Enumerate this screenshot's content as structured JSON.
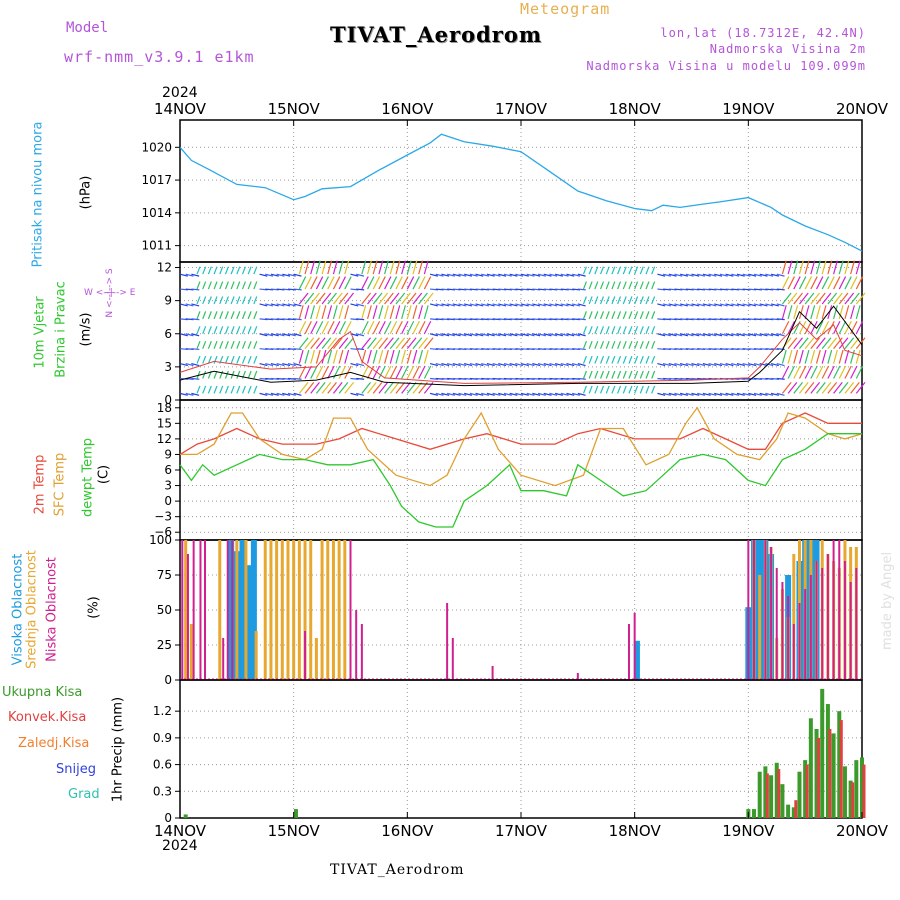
{
  "header": {
    "model_label": "Model",
    "model_value": "wrf-nmm_v3.9.1  e1km",
    "meteogram_label": "Meteogram",
    "station_title": "TIVAT_Aerodrom",
    "lonlat": "lon,lat (18.7312E, 42.4N)",
    "height": "Nadmorska Visina 2m",
    "model_height": "Nadmorska Visina u modelu 109.099m",
    "year": "2024",
    "watermark": "made by Angel"
  },
  "footer": {
    "station": "TIVAT_Aerodrom",
    "year": "2024"
  },
  "x_axis": {
    "labels": [
      "14NOV",
      "15NOV",
      "16NOV",
      "17NOV",
      "18NOV",
      "19NOV",
      "20NOV"
    ],
    "range_days": [
      0,
      6
    ]
  },
  "panel_labels": {
    "pressure": [
      "Pritisak na nivou mora"
    ],
    "pressure_unit": "(hPa)",
    "wind": [
      "10m Vjetar",
      "Brzina i Pravac"
    ],
    "wind_unit": "(m/s)",
    "wind_compass": "W <--|--> E",
    "wind_compass_vertical": "N <--|--> S",
    "temp": [
      "2m Temp",
      "SFC Temp",
      "dewpt Temp"
    ],
    "temp_unit": "(C)",
    "cloud": [
      "Visoka Oblacnost",
      "Srednja Oblacnost",
      "Niska Oblacnost"
    ],
    "cloud_unit": "(%)",
    "precip": [
      "Ukupna Kisa",
      "Konvek.Kisa",
      "Zaledj.Kisa",
      "Snijeg",
      "Grad"
    ],
    "precip_unit": "1hr Precip (mm)"
  },
  "colors": {
    "pressure": "#2ba8e8",
    "temp2m": "#e84a3a",
    "sfc": "#e0a030",
    "dewpt": "#2ec82e",
    "high_cloud": "#1e9be0",
    "mid_cloud": "#e8a830",
    "low_cloud": "#d02090",
    "total_rain": "#3a9a2a",
    "conv_rain": "#e04040",
    "frz_rain": "#f08030",
    "snow": "#3040e0",
    "hail": "#30c0b0",
    "model": "#b455d8",
    "meteogram": "#e8b050"
  },
  "chart_data": [
    {
      "type": "line",
      "name": "pressure",
      "ylim": [
        1009.5,
        1022.5
      ],
      "yticks": [
        1011,
        1014,
        1017,
        1020
      ],
      "series": [
        {
          "x": [
            0,
            0.1,
            0.25,
            0.5,
            0.75,
            1.0,
            1.1,
            1.25,
            1.5,
            1.75,
            2.0,
            2.2,
            2.3,
            2.5,
            2.75,
            3.0,
            3.25,
            3.5,
            3.75,
            4.0,
            4.15,
            4.25,
            4.4,
            4.6,
            4.75,
            5.0,
            5.2,
            5.3,
            5.5,
            5.7,
            5.85,
            6.0
          ],
          "y": [
            1020,
            1018.8,
            1018,
            1016.6,
            1016.3,
            1015.2,
            1015.5,
            1016.2,
            1016.4,
            1017.9,
            1019.3,
            1020.4,
            1021.2,
            1020.5,
            1020.1,
            1019.6,
            1017.8,
            1016.0,
            1015.1,
            1014.4,
            1014.2,
            1014.7,
            1014.5,
            1014.8,
            1015.0,
            1015.4,
            1014.5,
            1013.8,
            1012.8,
            1012.0,
            1011.3,
            1010.5
          ]
        }
      ]
    },
    {
      "type": "line",
      "name": "wind",
      "ylim": [
        0,
        12.5
      ],
      "yticks": [
        0,
        3,
        6,
        9,
        12
      ],
      "series": [
        {
          "name": "gust",
          "x": [
            0,
            0.3,
            0.8,
            1.2,
            1.4,
            1.5,
            1.6,
            1.8,
            2.5,
            3.5,
            4.5,
            5.0,
            5.1,
            5.3,
            5.45,
            5.6,
            5.75,
            5.85,
            6.0
          ],
          "y": [
            2.5,
            3.5,
            2.8,
            3.0,
            5.5,
            6.2,
            3.5,
            2.0,
            1.5,
            1.6,
            1.8,
            2.0,
            3.0,
            5.5,
            7.0,
            5.5,
            6.8,
            4.5,
            4.0
          ]
        },
        {
          "name": "wind_speed",
          "x": [
            0,
            0.3,
            0.8,
            1.2,
            1.5,
            1.8,
            2.5,
            3.5,
            4.5,
            5.0,
            5.1,
            5.3,
            5.45,
            5.6,
            5.75,
            6.0
          ],
          "y": [
            1.8,
            2.6,
            1.6,
            1.8,
            2.5,
            1.6,
            1.3,
            1.5,
            1.5,
            1.7,
            2.5,
            4.5,
            8.0,
            6.5,
            8.5,
            5.0
          ]
        }
      ],
      "barbs_direction_note": "wind vectors shown as coloured arrows along the panel"
    },
    {
      "type": "line",
      "name": "temperature",
      "ylim": [
        -7.5,
        19.5
      ],
      "yticks": [
        -6,
        -3,
        0,
        3,
        6,
        9,
        12,
        15,
        18
      ],
      "series": [
        {
          "name": "2m Temp",
          "x": [
            0,
            0.15,
            0.3,
            0.5,
            0.7,
            0.9,
            1.2,
            1.4,
            1.6,
            1.9,
            2.2,
            2.5,
            2.7,
            3.0,
            3.3,
            3.5,
            3.7,
            4.0,
            4.2,
            4.4,
            4.6,
            4.8,
            5.0,
            5.15,
            5.3,
            5.5,
            5.7,
            5.85,
            6.0
          ],
          "y": [
            9,
            11,
            12,
            14,
            12,
            11,
            11,
            12,
            14,
            12,
            10,
            12,
            13,
            11,
            11,
            13,
            14,
            12,
            12,
            12,
            14,
            12,
            10,
            10,
            15,
            17,
            15,
            15,
            15
          ]
        },
        {
          "name": "SFC Temp",
          "x": [
            0,
            0.15,
            0.3,
            0.45,
            0.55,
            0.7,
            0.9,
            1.1,
            1.25,
            1.35,
            1.5,
            1.65,
            1.9,
            2.2,
            2.35,
            2.5,
            2.65,
            2.8,
            3.0,
            3.3,
            3.55,
            3.7,
            3.9,
            4.1,
            4.3,
            4.45,
            4.55,
            4.7,
            4.9,
            5.1,
            5.25,
            5.35,
            5.5,
            5.7,
            5.85,
            6.0
          ],
          "y": [
            9,
            9,
            11,
            17,
            17,
            12,
            9,
            8,
            10,
            16,
            16,
            10,
            5,
            3,
            5,
            12,
            17,
            10,
            5,
            3,
            5,
            14,
            14,
            7,
            9,
            15,
            18,
            12,
            9,
            8,
            12,
            17,
            16,
            13,
            12,
            13
          ]
        },
        {
          "name": "dewpt Temp",
          "x": [
            0,
            0.1,
            0.2,
            0.3,
            0.5,
            0.7,
            0.9,
            1.1,
            1.3,
            1.5,
            1.7,
            1.85,
            1.95,
            2.1,
            2.25,
            2.4,
            2.5,
            2.7,
            2.9,
            3.0,
            3.2,
            3.4,
            3.5,
            3.7,
            3.9,
            4.1,
            4.25,
            4.4,
            4.6,
            4.8,
            5.0,
            5.15,
            5.3,
            5.5,
            5.7,
            5.85,
            6.0
          ],
          "y": [
            7,
            4,
            7,
            5,
            7,
            9,
            8,
            8,
            7,
            7,
            8,
            3,
            -1,
            -4,
            -5,
            -5,
            0,
            3,
            7,
            2,
            2,
            1,
            7,
            4,
            1,
            2,
            5,
            8,
            9,
            8,
            4,
            3,
            8,
            10,
            13,
            13,
            13
          ]
        }
      ]
    },
    {
      "type": "bar",
      "name": "cloud",
      "ylim": [
        0,
        100
      ],
      "yticks": [
        0,
        25,
        50,
        75,
        100
      ],
      "series": [
        {
          "name": "Visoka Oblacnost",
          "x": [
            0.45,
            0.5,
            0.55,
            0.6,
            0.65,
            0.72,
            4.02,
            5.0,
            5.05,
            5.1,
            5.15,
            5.2,
            5.35,
            5.45,
            5.5,
            5.55,
            5.6
          ],
          "y": [
            100,
            92,
            100,
            82,
            100,
            0,
            28,
            52,
            100,
            100,
            100,
            90,
            75,
            85,
            100,
            100,
            100
          ]
        },
        {
          "name": "Srednja Oblacnost",
          "x": [
            0.05,
            0.1,
            0.35,
            0.5,
            0.58,
            0.67,
            0.75,
            0.8,
            0.85,
            0.9,
            0.95,
            1.0,
            1.05,
            1.1,
            1.15,
            1.2,
            1.25,
            1.3,
            1.35,
            1.4,
            1.45,
            5.05,
            5.1,
            5.15,
            5.2,
            5.25,
            5.3,
            5.35,
            5.4,
            5.45,
            5.5,
            5.55,
            5.6,
            5.65,
            5.7,
            5.75,
            5.8,
            5.85,
            5.9,
            5.95
          ],
          "y": [
            100,
            40,
            100,
            100,
            100,
            35,
            100,
            100,
            100,
            100,
            100,
            100,
            100,
            100,
            100,
            30,
            100,
            100,
            100,
            100,
            100,
            100,
            75,
            100,
            95,
            30,
            65,
            45,
            90,
            100,
            100,
            100,
            85,
            100,
            90,
            85,
            80,
            100,
            95,
            95
          ]
        },
        {
          "name": "Niska Oblacnost",
          "x": [
            0.02,
            0.07,
            0.12,
            0.18,
            0.22,
            0.38,
            0.42,
            0.46,
            1.1,
            1.5,
            1.55,
            1.6,
            2.35,
            2.4,
            2.75,
            3.5,
            3.95,
            4.0,
            5.0,
            5.05,
            5.15,
            5.2,
            5.25,
            5.3,
            5.35,
            5.4,
            5.45,
            5.5,
            5.55,
            5.6,
            5.65,
            5.7,
            5.75,
            5.8,
            5.85,
            5.9,
            5.95
          ],
          "y": [
            100,
            90,
            100,
            100,
            100,
            30,
            100,
            100,
            35,
            100,
            50,
            40,
            55,
            30,
            10,
            5,
            40,
            48,
            100,
            100,
            100,
            95,
            80,
            70,
            60,
            40,
            55,
            65,
            75,
            85,
            80,
            90,
            100,
            100,
            85,
            70,
            80
          ]
        }
      ]
    },
    {
      "type": "bar",
      "name": "precipitation",
      "ylim": [
        0,
        1.55
      ],
      "yticks": [
        0,
        0.3,
        0.6,
        0.9,
        1.2
      ],
      "series": [
        {
          "name": "Ukupna Kisa",
          "x": [
            0.05,
            1.02,
            5.0,
            5.05,
            5.1,
            5.15,
            5.2,
            5.25,
            5.3,
            5.35,
            5.4,
            5.45,
            5.5,
            5.55,
            5.6,
            5.65,
            5.7,
            5.75,
            5.8,
            5.85,
            5.9,
            5.95,
            6.0
          ],
          "y": [
            0.04,
            0.1,
            0.1,
            0.1,
            0.52,
            0.58,
            0.48,
            0.62,
            0.38,
            0.15,
            0.12,
            0.52,
            0.65,
            1.12,
            1.0,
            1.45,
            1.28,
            0.95,
            1.2,
            0.58,
            0.42,
            0.65,
            0.68
          ]
        },
        {
          "name": "Konvek.Kisa",
          "x": [
            5.15,
            5.25,
            5.4,
            5.5,
            5.6,
            5.7,
            5.8,
            5.9,
            6.0
          ],
          "y": [
            0.5,
            0.55,
            0.2,
            0.6,
            0.9,
            1.0,
            1.1,
            0.4,
            0.6
          ]
        }
      ]
    }
  ]
}
